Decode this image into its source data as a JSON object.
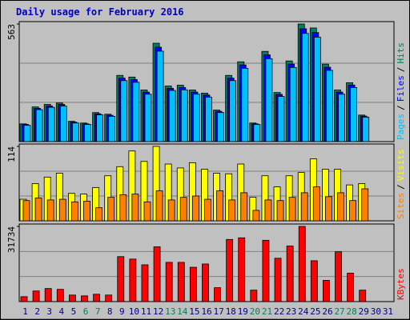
{
  "chart_data": [
    {
      "type": "bar",
      "title": "Daily usage for February 2016",
      "series": [
        {
          "name": "Hits",
          "color": "#00805c",
          "values": [
            85,
            166,
            178,
            185,
            97,
            89,
            139,
            131,
            317,
            309,
            247,
            471,
            266,
            270,
            247,
            232,
            151,
            317,
            382,
            89,
            432,
            235,
            386,
            563,
            544,
            371,
            247,
            282,
            127,
            null,
            null
          ]
        },
        {
          "name": "Files",
          "color": "#0000ff",
          "values": [
            82,
            159,
            171,
            178,
            93,
            85,
            133,
            126,
            304,
            297,
            237,
            452,
            255,
            259,
            237,
            223,
            145,
            304,
            367,
            85,
            415,
            226,
            371,
            540,
            522,
            356,
            237,
            271,
            122,
            null,
            null
          ]
        },
        {
          "name": "Pages",
          "color": "#00c0ff",
          "values": [
            78,
            153,
            164,
            170,
            89,
            82,
            128,
            121,
            292,
            284,
            227,
            433,
            245,
            248,
            227,
            213,
            139,
            292,
            351,
            82,
            397,
            216,
            355,
            518,
            500,
            341,
            227,
            259,
            117,
            null,
            null
          ]
        }
      ],
      "legend_separator": "/",
      "ylim": [
        0,
        563
      ],
      "yticks": [
        563
      ],
      "grid_divisions": 3
    },
    {
      "type": "bar",
      "series": [
        {
          "name": "Visits",
          "color": "#ffff00",
          "values": [
            33,
            57,
            67,
            73,
            42,
            41,
            51,
            69,
            83,
            107,
            91,
            114,
            87,
            81,
            89,
            79,
            73,
            72,
            87,
            36,
            69,
            52,
            69,
            74,
            95,
            79,
            79,
            55,
            57,
            null,
            null
          ]
        },
        {
          "name": "Sites",
          "color": "#ff8000",
          "values": [
            31,
            35,
            32,
            33,
            29,
            30,
            20,
            36,
            40,
            41,
            29,
            46,
            32,
            36,
            38,
            33,
            46,
            32,
            43,
            16,
            32,
            31,
            36,
            43,
            52,
            37,
            43,
            31,
            49,
            null,
            null
          ]
        }
      ],
      "legend_separator": "/",
      "ylim": [
        0,
        114
      ],
      "yticks": [
        114
      ],
      "grid_divisions": 3
    },
    {
      "type": "bar",
      "categories": [
        "1",
        "2",
        "3",
        "4",
        "5",
        "6",
        "7",
        "8",
        "9",
        "10",
        "11",
        "12",
        "13",
        "14",
        "15",
        "16",
        "17",
        "18",
        "19",
        "20",
        "21",
        "22",
        "23",
        "24",
        "25",
        "26",
        "27",
        "28",
        "29",
        "30",
        "31"
      ],
      "category_colors": [
        "#000080",
        "#000080",
        "#000080",
        "#000080",
        "#000080",
        "#00805c",
        "#00805c",
        "#000080",
        "#000080",
        "#000080",
        "#000080",
        "#000080",
        "#00805c",
        "#00805c",
        "#000080",
        "#000080",
        "#000080",
        "#000080",
        "#000080",
        "#00805c",
        "#00805c",
        "#000080",
        "#000080",
        "#000080",
        "#000080",
        "#000080",
        "#00805c",
        "#00805c",
        "#000080",
        "#000080",
        "#000080"
      ],
      "series": [
        {
          "name": "KBytes",
          "color": "#ff0000",
          "values": [
            2070,
            4485,
            5520,
            5175,
            2760,
            2415,
            3105,
            2760,
            18975,
            17940,
            15525,
            23115,
            16560,
            16560,
            14490,
            15870,
            5865,
            26220,
            26910,
            4830,
            25875,
            18285,
            23460,
            31734,
            17250,
            8970,
            21045,
            12000,
            4830,
            null,
            null
          ]
        }
      ],
      "ylim": [
        0,
        31734
      ],
      "yticks": [
        31734
      ],
      "grid_divisions": 3
    }
  ]
}
